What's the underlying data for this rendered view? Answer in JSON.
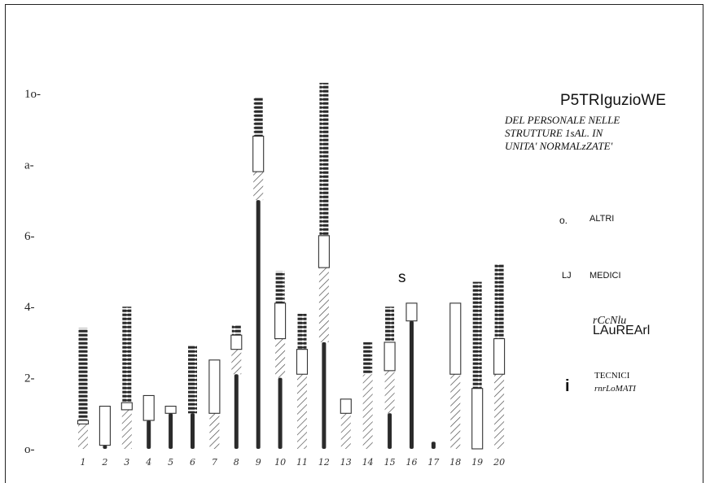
{
  "chart_data": {
    "type": "bar",
    "title": "P5TRIguzioWE",
    "subtitle_lines": [
      "DEL PERSONALE NELLE",
      "STRUTTURE 1sAL. IN",
      "UNITA' NORMALzZATE'"
    ],
    "categories": [
      "1",
      "2",
      "3",
      "4",
      "5",
      "6",
      "7",
      "8",
      "9",
      "10",
      "11",
      "12",
      "13",
      "14",
      "15",
      "16",
      "17",
      "18",
      "19",
      "20"
    ],
    "ylim": [
      0,
      10
    ],
    "y_tick_labels": [
      {
        "value": 0,
        "label": "o-"
      },
      {
        "value": 2,
        "label": "2-"
      },
      {
        "value": 4,
        "label": "4-"
      },
      {
        "value": 6,
        "label": "6-"
      },
      {
        "value": 8,
        "label": "a-"
      },
      {
        "value": 10,
        "label": "1o-"
      }
    ],
    "series": [
      {
        "name": "TECNICI rnrLoMATI",
        "style": "solid",
        "values": [
          0.0,
          0.1,
          0.0,
          0.8,
          1.0,
          1.0,
          0.0,
          2.1,
          7.0,
          2.0,
          0.0,
          3.0,
          0.0,
          0.0,
          1.0,
          3.6,
          0.2,
          0.0,
          0.0,
          0.0
        ]
      },
      {
        "name": "rCcNlu LAuREArl",
        "style": "hatched",
        "values": [
          0.7,
          0.0,
          1.1,
          0.0,
          0.0,
          0.0,
          1.0,
          0.7,
          0.8,
          1.1,
          2.1,
          2.1,
          1.0,
          2.1,
          1.2,
          0.0,
          0.0,
          2.1,
          0.0,
          2.1
        ]
      },
      {
        "name": "MEDICI",
        "style": "box",
        "values": [
          0.1,
          1.1,
          0.2,
          0.7,
          0.2,
          0.0,
          1.5,
          0.4,
          1.0,
          1.0,
          0.7,
          0.9,
          0.4,
          0.0,
          0.8,
          0.5,
          0.0,
          2.0,
          1.7,
          1.0
        ]
      },
      {
        "name": "ALTRI",
        "style": "beaded",
        "values": [
          2.6,
          0.0,
          2.7,
          0.0,
          0.0,
          1.9,
          0.0,
          0.3,
          1.1,
          0.9,
          1.0,
          4.3,
          0.0,
          0.9,
          1.0,
          0.0,
          0.0,
          0.0,
          3.0,
          2.1
        ]
      }
    ],
    "grid": false,
    "legend_position": "right"
  },
  "legend": {
    "items": [
      {
        "key": "o.",
        "label": "ALTRI"
      },
      {
        "key": "LJ",
        "label": "MEDICI"
      },
      {
        "key": "",
        "label_line1": "rCcNlu",
        "label_line2": "LAuREArl"
      },
      {
        "key": "i",
        "label_line1": "TECNICI",
        "label_line2": "rnrLoMATI"
      }
    ]
  },
  "annotations": {
    "s_mark": "s"
  }
}
